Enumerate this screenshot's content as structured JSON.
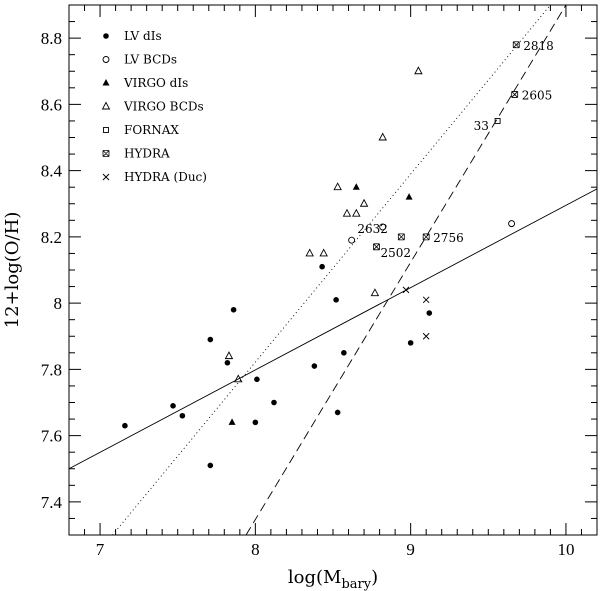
{
  "chart_data": {
    "type": "scatter",
    "title": "",
    "xlabel": "log(M",
    "xlabel_sub": "bary",
    "xlabel_close": ")",
    "ylabel": "12+log(O/H)",
    "xlim": [
      6.8,
      10.2
    ],
    "ylim": [
      7.3,
      8.9
    ],
    "xticks": [
      7,
      8,
      9,
      10
    ],
    "xtick_labels": [
      "7",
      "8",
      "9",
      "10"
    ],
    "yticks": [
      7.4,
      7.6,
      7.8,
      8.0,
      8.2,
      8.4,
      8.6,
      8.8
    ],
    "ytick_labels": [
      "7.4",
      "7.6",
      "7.8",
      "8",
      "8.2",
      "8.4",
      "8.6",
      "8.8"
    ],
    "legend_position": "top-left",
    "series": [
      {
        "name": "LV dIs",
        "marker": "filled-circle",
        "points": [
          [
            7.16,
            7.63
          ],
          [
            7.47,
            7.69
          ],
          [
            7.53,
            7.66
          ],
          [
            7.71,
            7.51
          ],
          [
            7.71,
            7.89
          ],
          [
            7.82,
            7.82
          ],
          [
            7.86,
            7.98
          ],
          [
            8.01,
            7.77
          ],
          [
            8.0,
            7.64
          ],
          [
            8.12,
            7.7
          ],
          [
            8.38,
            7.81
          ],
          [
            8.43,
            8.11
          ],
          [
            8.52,
            8.01
          ],
          [
            8.53,
            7.67
          ],
          [
            8.57,
            7.85
          ],
          [
            9.0,
            7.88
          ],
          [
            9.12,
            7.97
          ]
        ]
      },
      {
        "name": "LV BCDs",
        "marker": "open-circle",
        "points": [
          [
            8.62,
            8.19
          ],
          [
            8.82,
            8.23
          ],
          [
            9.65,
            8.24
          ]
        ]
      },
      {
        "name": "VIRGO dIs",
        "marker": "filled-triangle",
        "points": [
          [
            7.85,
            7.64
          ],
          [
            8.65,
            8.35
          ],
          [
            8.99,
            8.32
          ]
        ]
      },
      {
        "name": "VIRGO BCDs",
        "marker": "open-triangle",
        "points": [
          [
            7.83,
            7.84
          ],
          [
            7.89,
            7.77
          ],
          [
            8.35,
            8.15
          ],
          [
            8.44,
            8.15
          ],
          [
            8.53,
            8.35
          ],
          [
            8.59,
            8.27
          ],
          [
            8.65,
            8.27
          ],
          [
            8.7,
            8.3
          ],
          [
            8.77,
            8.03
          ],
          [
            8.82,
            8.5
          ],
          [
            9.05,
            8.7
          ]
        ]
      },
      {
        "name": "FORNAX",
        "marker": "open-square",
        "points": [
          [
            9.56,
            8.55
          ]
        ]
      },
      {
        "name": "HYDRA",
        "marker": "bowtie",
        "points": [
          [
            8.78,
            8.17
          ],
          [
            8.94,
            8.2
          ],
          [
            9.1,
            8.2
          ],
          [
            9.67,
            8.63
          ],
          [
            9.68,
            8.78
          ]
        ]
      },
      {
        "name": "HYDRA (Duc)",
        "marker": "cross",
        "points": [
          [
            8.97,
            8.04
          ],
          [
            9.1,
            8.01
          ],
          [
            9.1,
            7.9
          ]
        ]
      }
    ],
    "fit_lines": [
      {
        "name": "solid fit",
        "style": "solid",
        "points": [
          [
            6.8,
            7.5
          ],
          [
            10.2,
            8.345
          ]
        ]
      },
      {
        "name": "dotted fit",
        "style": "dotted",
        "points": [
          [
            7.08,
            7.3
          ],
          [
            9.9,
            8.9
          ]
        ]
      },
      {
        "name": "dashed fit",
        "style": "dashed",
        "points": [
          [
            7.94,
            7.3
          ],
          [
            10.0,
            8.9
          ]
        ]
      }
    ],
    "annotations": [
      {
        "text": "2818",
        "x": 9.68,
        "y": 8.78
      },
      {
        "text": "2605",
        "x": 9.67,
        "y": 8.63
      },
      {
        "text": "33",
        "x": 9.56,
        "y": 8.55
      },
      {
        "text": "2632",
        "x": 8.94,
        "y": 8.2
      },
      {
        "text": "2756",
        "x": 9.1,
        "y": 8.2
      },
      {
        "text": "2502",
        "x": 8.78,
        "y": 8.17
      }
    ]
  }
}
